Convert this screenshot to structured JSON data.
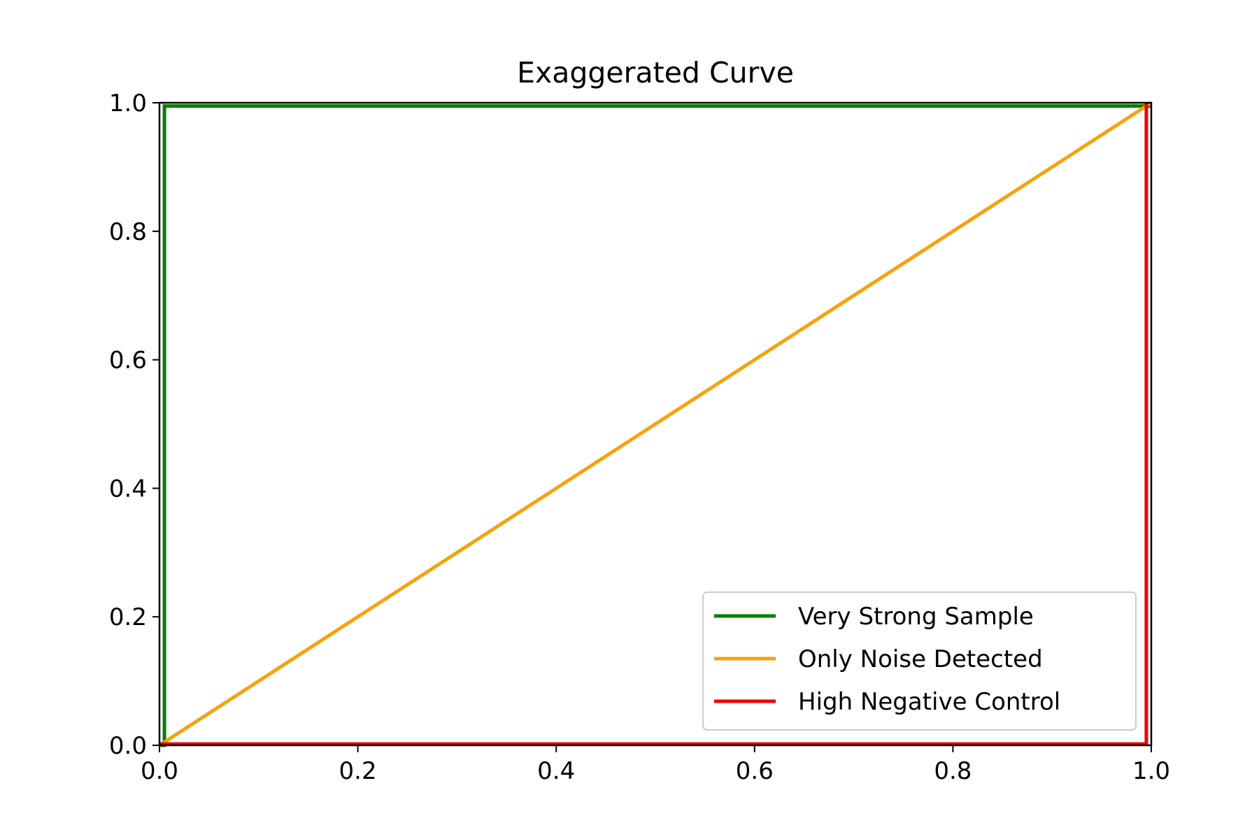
{
  "chart_data": {
    "type": "line",
    "title": "Exaggerated Curve",
    "xlabel": "",
    "ylabel": "",
    "xlim": [
      0.0,
      1.0
    ],
    "ylim": [
      0.0,
      1.0
    ],
    "x_ticks": [
      "0.0",
      "0.2",
      "0.4",
      "0.6",
      "0.8",
      "1.0"
    ],
    "y_ticks": [
      "0.0",
      "0.2",
      "0.4",
      "0.6",
      "0.8",
      "1.0"
    ],
    "x_tick_values": [
      0.0,
      0.2,
      0.4,
      0.6,
      0.8,
      1.0
    ],
    "y_tick_values": [
      0.0,
      0.2,
      0.4,
      0.6,
      0.8,
      1.0
    ],
    "grid": false,
    "legend_position": "lower-right",
    "series": [
      {
        "name": "Very Strong Sample",
        "color": "#008000",
        "x": [
          0.0,
          0.005,
          0.005,
          1.0
        ],
        "y": [
          0.0,
          0.0,
          0.995,
          0.995
        ]
      },
      {
        "name": "Only Noise Detected",
        "color": "#f5a30f",
        "x": [
          0.0,
          1.0
        ],
        "y": [
          0.0,
          1.0
        ]
      },
      {
        "name": "High Negative Control",
        "color": "#ee0000",
        "x": [
          0.0,
          0.995,
          0.995
        ],
        "y": [
          0.002,
          0.002,
          1.0
        ]
      }
    ]
  }
}
